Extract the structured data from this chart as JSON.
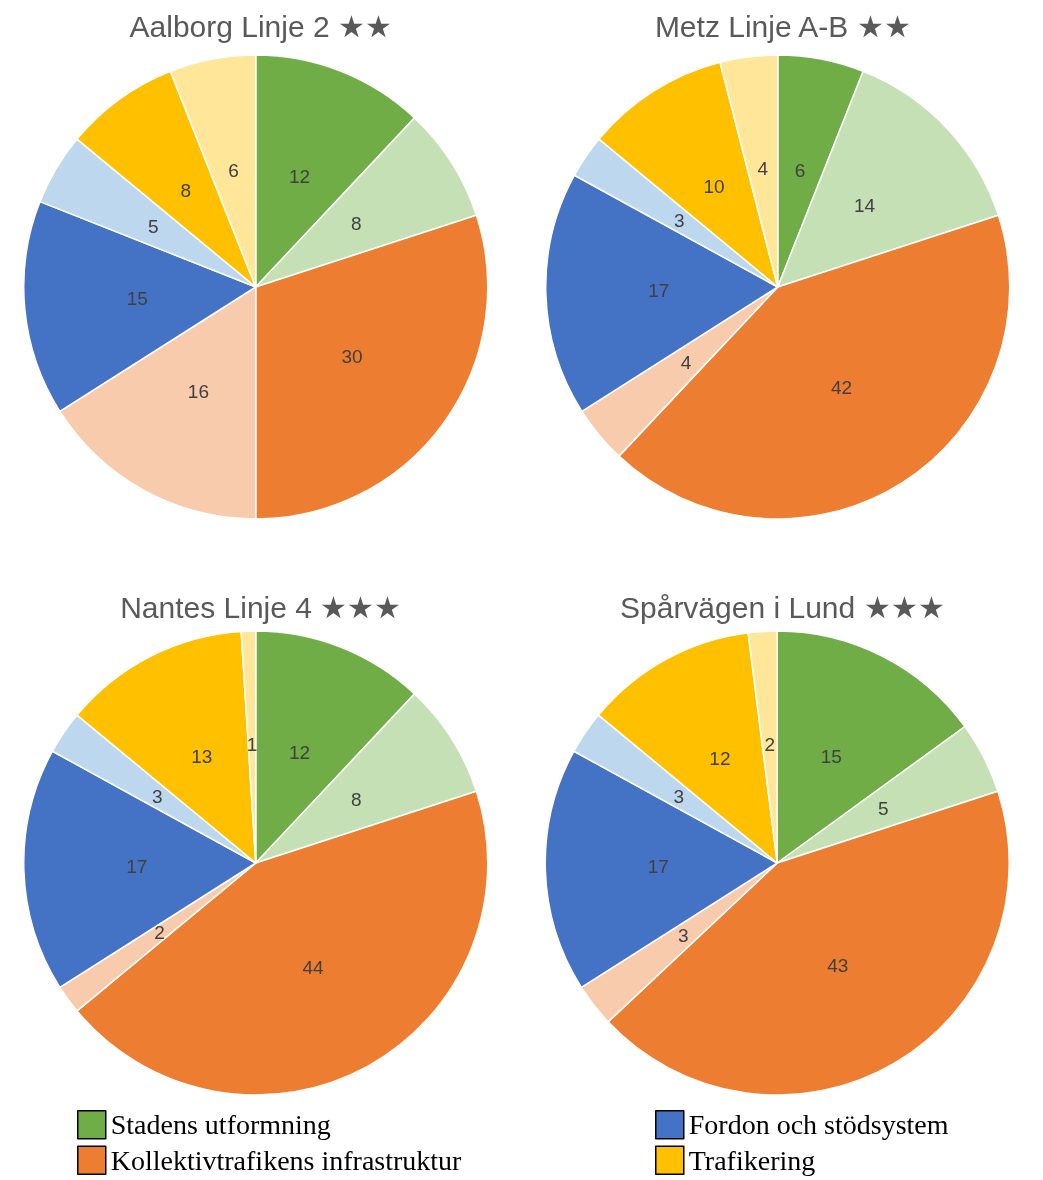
{
  "chart_data": [
    {
      "type": "pie",
      "title": "Aalborg Linje 2 ★★",
      "categories": [
        null,
        null,
        null,
        null,
        null,
        null,
        null,
        null
      ],
      "values": [
        12,
        8,
        30,
        16,
        15,
        5,
        8,
        6
      ],
      "colors": [
        "#70ad47",
        "#c5e0b4",
        "#ed7d31",
        "#f8cbad",
        "#4472c4",
        "#bdd7ee",
        "#ffc000",
        "#ffe699"
      ],
      "data_labels": true,
      "legend": false
    },
    {
      "type": "pie",
      "title": "Metz Linje A-B ★★",
      "categories": [
        null,
        null,
        null,
        null,
        null,
        null,
        null,
        null
      ],
      "values": [
        6,
        14,
        42,
        4,
        17,
        3,
        10,
        4
      ],
      "colors": [
        "#70ad47",
        "#c5e0b4",
        "#ed7d31",
        "#f8cbad",
        "#4472c4",
        "#bdd7ee",
        "#ffc000",
        "#ffe699"
      ],
      "data_labels": true,
      "legend": false
    },
    {
      "type": "pie",
      "title": "Nantes Linje 4 ★★★",
      "categories": [
        null,
        null,
        null,
        null,
        null,
        null,
        null,
        null
      ],
      "values": [
        12,
        8,
        44,
        2,
        17,
        3,
        13,
        1
      ],
      "colors": [
        "#70ad47",
        "#c5e0b4",
        "#ed7d31",
        "#f8cbad",
        "#4472c4",
        "#bdd7ee",
        "#ffc000",
        "#ffe699"
      ],
      "data_labels": true,
      "legend": false
    },
    {
      "type": "pie",
      "title": "Spårvägen i Lund ★★★",
      "categories": [
        "Stadens utformning",
        null,
        "Kollektivtrafikens infrastruktur",
        null,
        "Fordon och stödsystem",
        null,
        "Trafikering",
        null
      ],
      "values": [
        15,
        5,
        43,
        3,
        17,
        3,
        12,
        2
      ],
      "colors": [
        "#70ad47",
        "#c5e0b4",
        "#ed7d31",
        "#f8cbad",
        "#4472c4",
        "#bdd7ee",
        "#ffc000",
        "#ffe699"
      ],
      "data_labels": true,
      "legend": "bottom"
    }
  ]
}
